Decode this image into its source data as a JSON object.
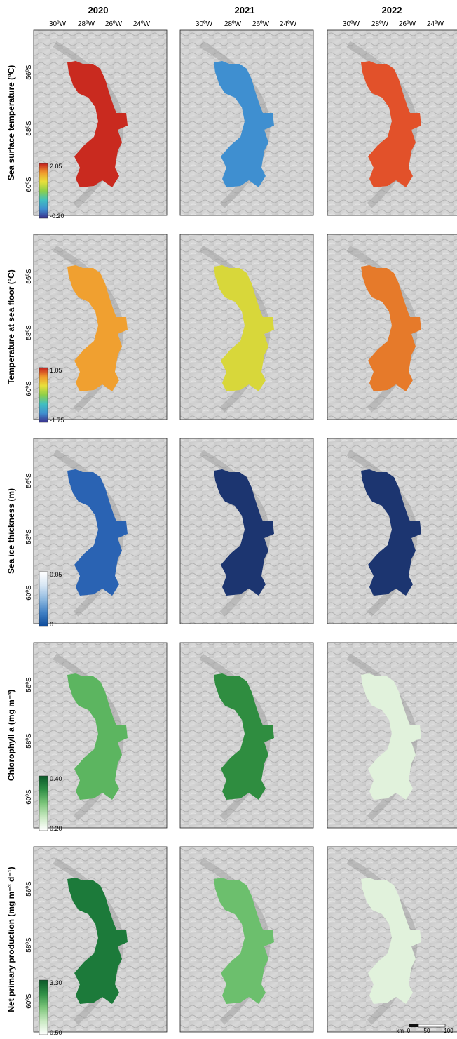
{
  "years": [
    "2020",
    "2021",
    "2022"
  ],
  "lon_labels": [
    "30ºW",
    "28ºW",
    "26ºW",
    "24ºW"
  ],
  "lat_labels": [
    "56ºS",
    "58ºS",
    "60ºS"
  ],
  "rows": [
    {
      "id": "sst",
      "label": "Sea surface temperature (ºC)",
      "legend_max": "2.05",
      "legend_min": "-0.20",
      "colors": [
        "#3a2f8c",
        "#3f8fd0",
        "#41c0c0",
        "#8ccf4a",
        "#e8e03a",
        "#f09a2c",
        "#c41f1f"
      ]
    },
    {
      "id": "sbt",
      "label": "Temperature at sea floor (ºC)",
      "legend_max": "1.05",
      "legend_min": "-1.75",
      "colors": [
        "#3a2f8c",
        "#3f8fd0",
        "#41c0c0",
        "#8ccf4a",
        "#e8e03a",
        "#f09a2c",
        "#c41f1f"
      ]
    },
    {
      "id": "ice",
      "label": "Sea ice thickness (m)",
      "legend_max": "0.05",
      "legend_min": "0",
      "colors": [
        "#0d4a9a",
        "#3f7fc4",
        "#8fb9e0",
        "#d7e6f4",
        "#ffffff"
      ]
    },
    {
      "id": "chl",
      "label": "Chlorophyll a (mg m⁻³)",
      "legend_max": "0.40",
      "legend_min": "0.20",
      "colors": [
        "#ffffff",
        "#c9e9c2",
        "#7cc57a",
        "#2f8f46",
        "#0b5a2a"
      ]
    },
    {
      "id": "npp",
      "label": "Net primary production (mg m⁻³ d⁻¹)",
      "legend_max": "3.30",
      "legend_min": "0.50",
      "colors": [
        "#ffffff",
        "#c9e9c2",
        "#7cc57a",
        "#2f8f46",
        "#0b5a2a"
      ]
    }
  ],
  "region_fill": {
    "sst": [
      "#c92a1f",
      "#3f8fd0",
      "#e2512a"
    ],
    "sbt": [
      "#f0a030",
      "#d8d73a",
      "#e67a2a"
    ],
    "ice": [
      "#2a63b3",
      "#1c3570",
      "#1c3570"
    ],
    "chl": [
      "#5cb560",
      "#2f8d40",
      "#e1f2dc"
    ],
    "npp": [
      "#1c7a3a",
      "#6cbf6d",
      "#e1f2dc"
    ]
  },
  "scalebar": {
    "unit": "km",
    "ticks": [
      "0",
      "50",
      "100"
    ]
  }
}
